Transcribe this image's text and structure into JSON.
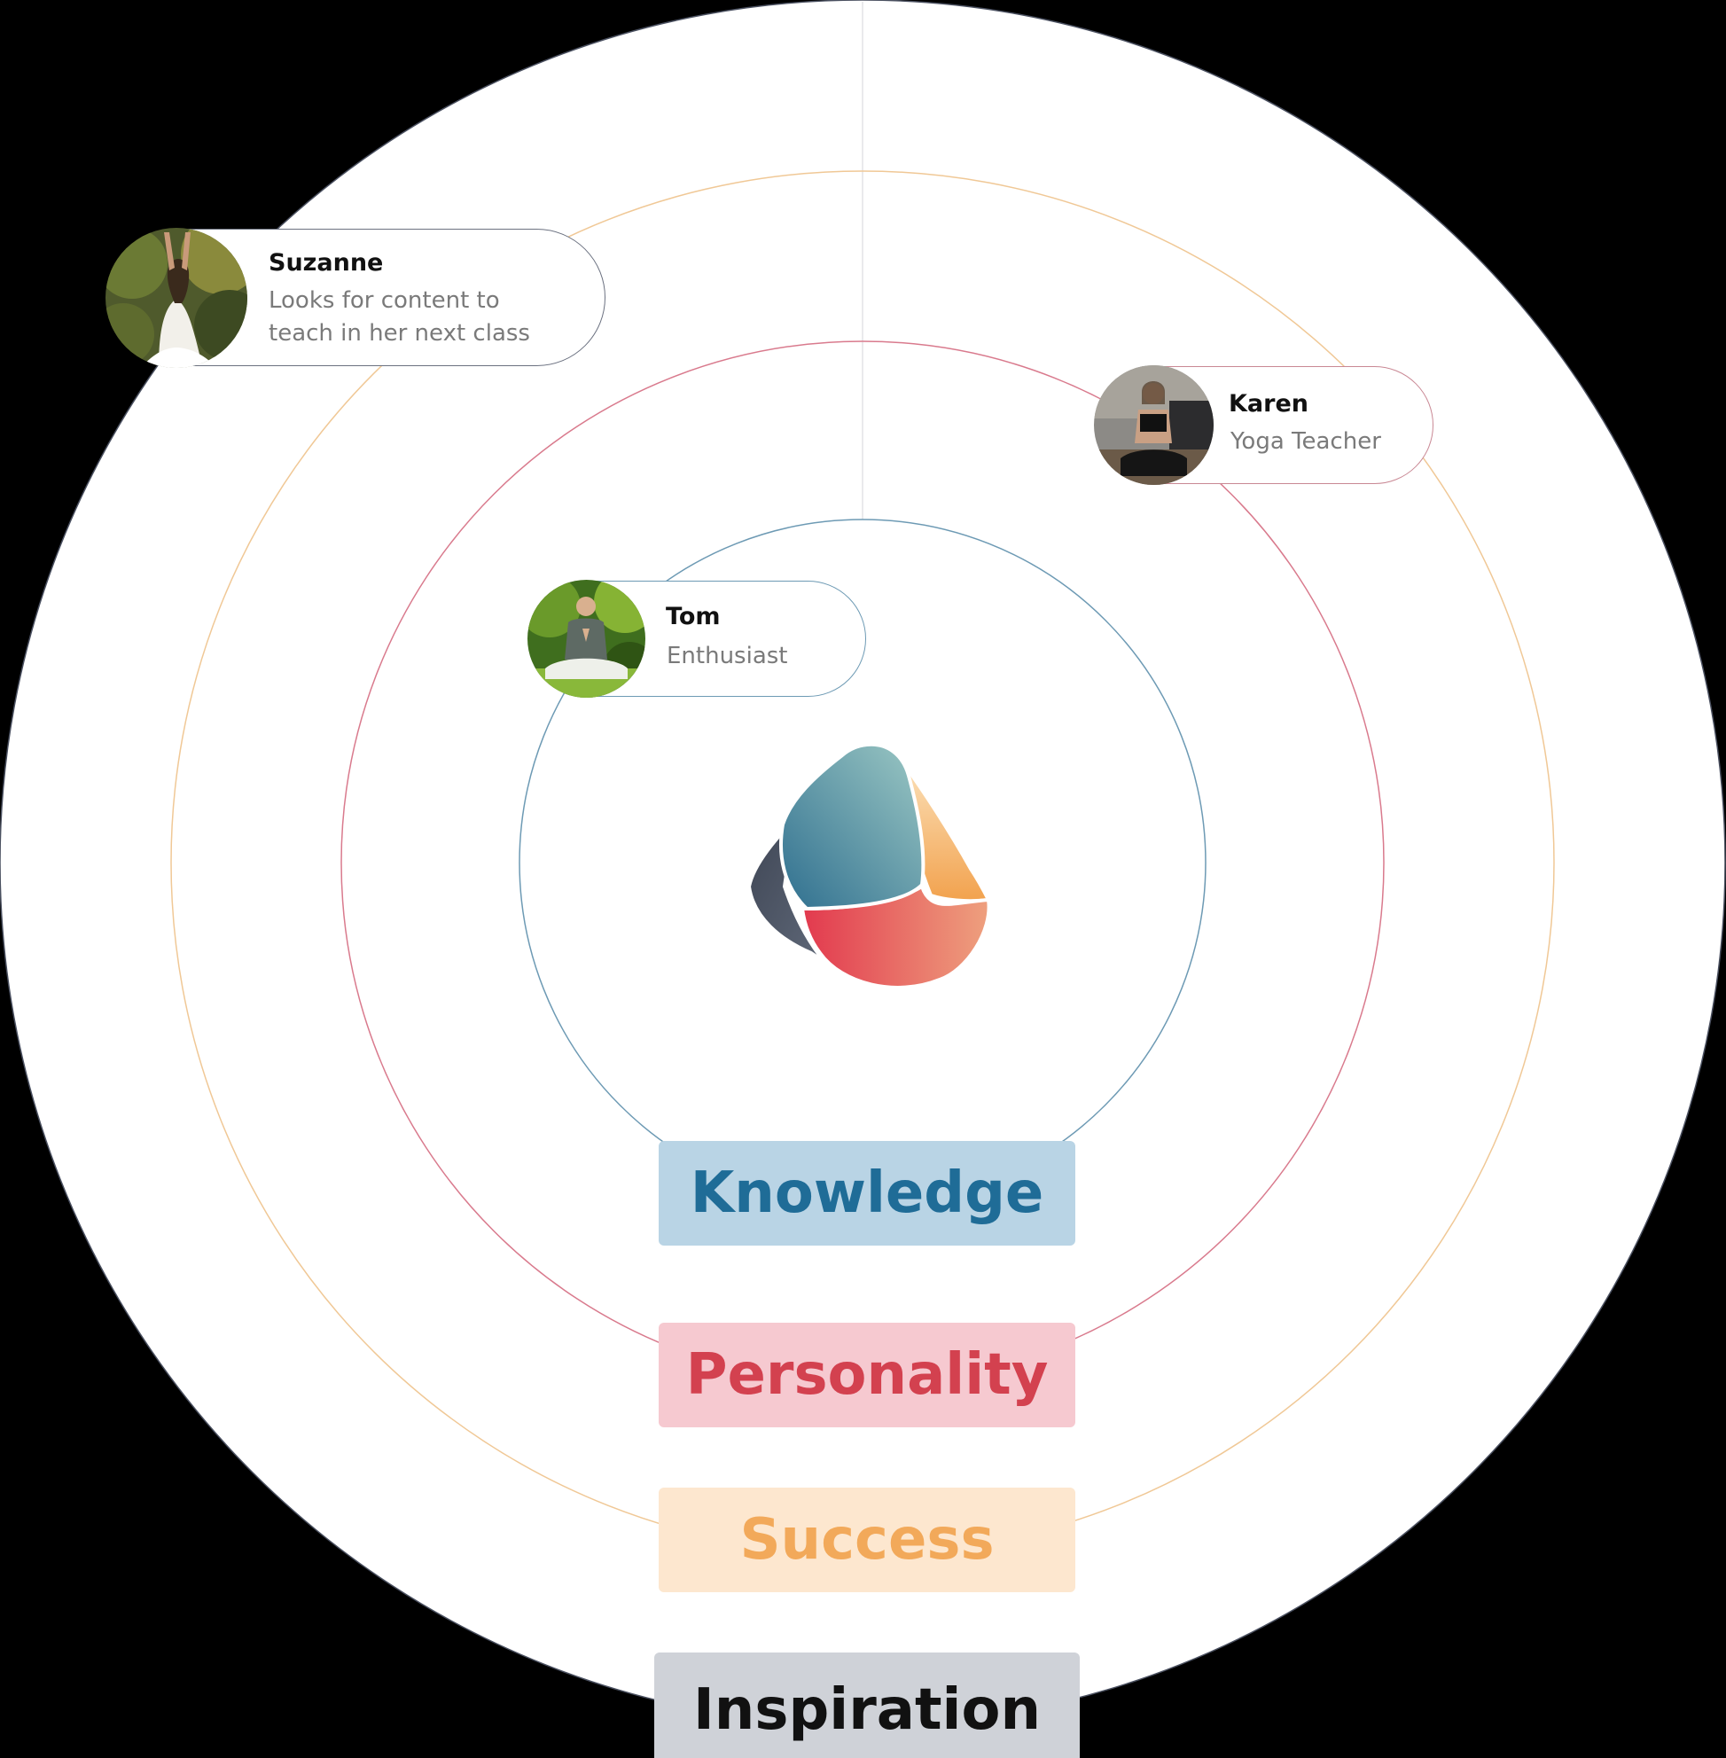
{
  "personas": [
    {
      "id": "suzanne",
      "name": "Suzanne",
      "description_lines": [
        "Looks for content to",
        "teach in her next class"
      ],
      "border_color": "#6b7180"
    },
    {
      "id": "karen",
      "name": "Karen",
      "description_lines": [
        "Yoga Teacher"
      ],
      "border_color": "#c98894"
    },
    {
      "id": "tom",
      "name": "Tom",
      "description_lines": [
        "Enthusiast"
      ],
      "border_color": "#6d9ab4"
    }
  ],
  "levels": [
    {
      "id": "knowledge",
      "label": "Knowledge",
      "ring_color": "#6d9ab4",
      "text_color": "#1f6c97",
      "bg_color": "#b9d4e5"
    },
    {
      "id": "personality",
      "label": "Personality",
      "ring_color": "#d97a8d",
      "text_color": "#d3414f",
      "bg_color": "#f6c9d0"
    },
    {
      "id": "success",
      "label": "Success",
      "ring_color": "#f0c896",
      "text_color": "#f2a95a",
      "bg_color": "#fde7cf"
    },
    {
      "id": "inspiration",
      "label": "Inspiration",
      "ring_color": "#4a5060",
      "text_color": "#111111",
      "bg_color": "#cfd2d8"
    }
  ],
  "icons": {
    "center_logo": "stone-logo-icon"
  }
}
